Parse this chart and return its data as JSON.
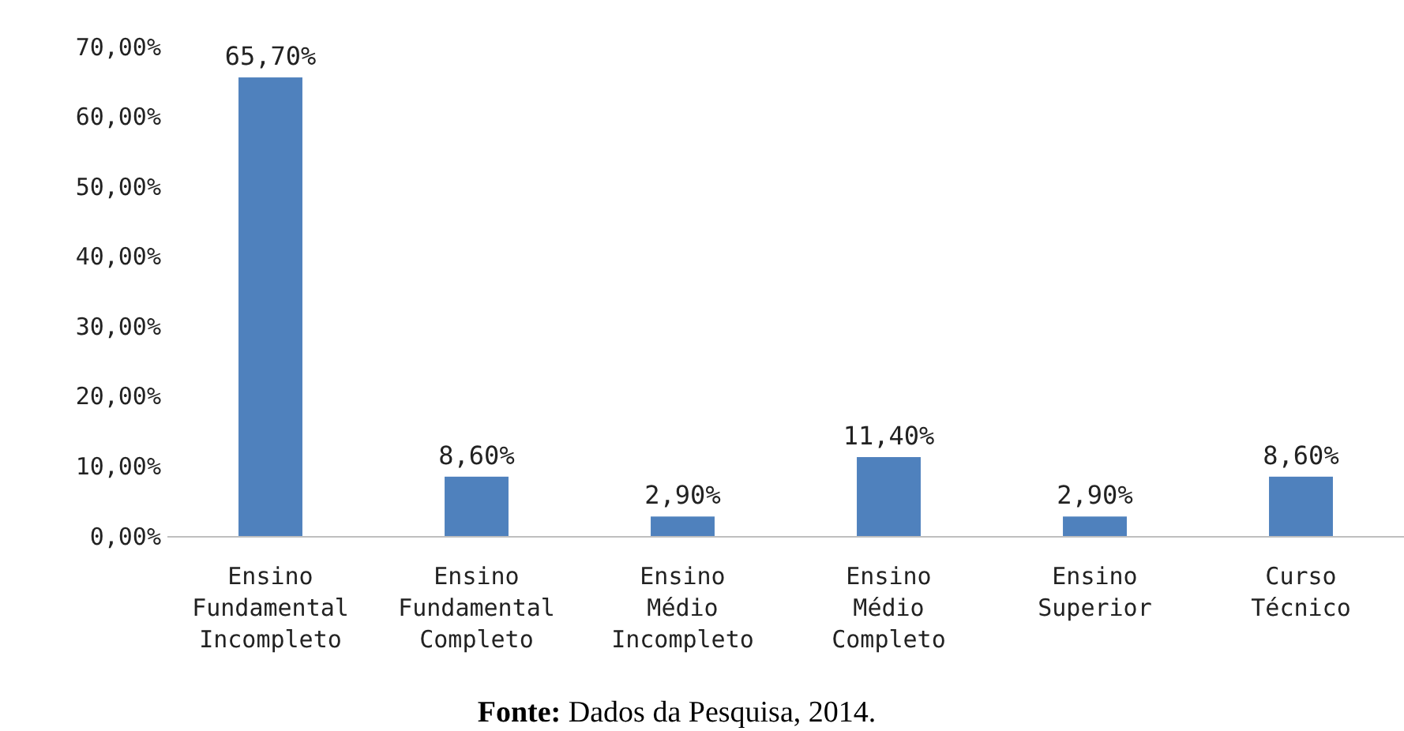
{
  "chart_data": {
    "type": "bar",
    "categories": [
      "Ensino\nFundamental\nIncompleto",
      "Ensino\nFundamental\nCompleto",
      "Ensino\nMédio\nIncompleto",
      "Ensino\nMédio\nCompleto",
      "Ensino\nSuperior",
      "Curso\nTécnico"
    ],
    "values": [
      65.7,
      8.6,
      2.9,
      11.4,
      2.9,
      8.6
    ],
    "color": "#4f81bd",
    "value_labels": [
      "65,70%",
      "8,60%",
      "2,90%",
      "11,40%",
      "2,90%",
      "8,60%"
    ],
    "ylim": [
      0,
      70
    ],
    "yticks": [
      {
        "value": 0,
        "label": "0,00%"
      },
      {
        "value": 10,
        "label": "10,00%"
      },
      {
        "value": 20,
        "label": "20,00%"
      },
      {
        "value": 30,
        "label": "30,00%"
      },
      {
        "value": 40,
        "label": "40,00%"
      },
      {
        "value": 50,
        "label": "50,00%"
      },
      {
        "value": 60,
        "label": "60,00%"
      },
      {
        "value": 70,
        "label": "70,00%"
      }
    ],
    "annotations": [
      "Fonte: Dados da Pesquisa, 2014."
    ]
  }
}
